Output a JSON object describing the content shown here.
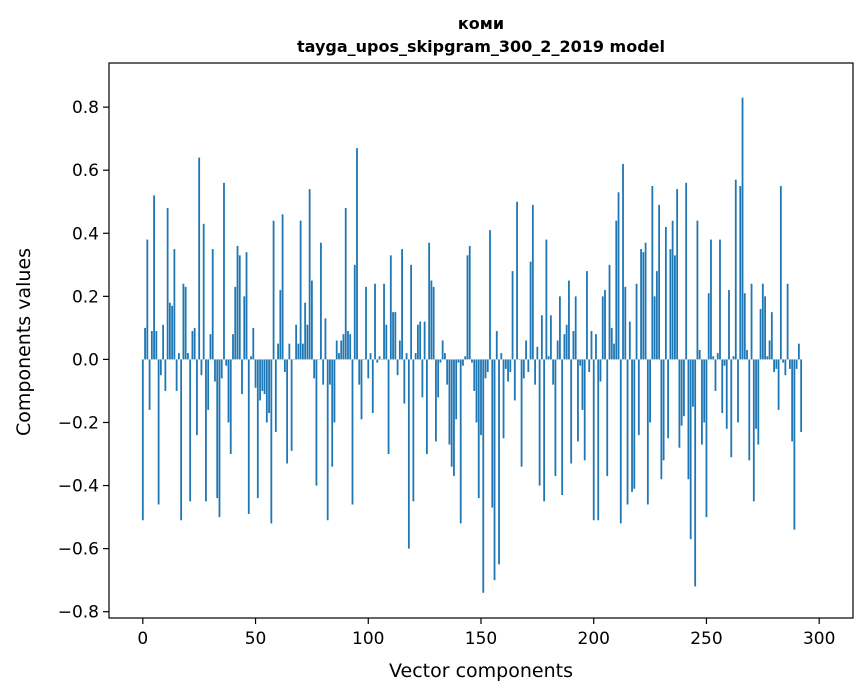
{
  "chart_data": {
    "type": "bar",
    "title": "коми",
    "subtitle": "tayga_upos_skipgram_300_2_2019 model",
    "xlabel": "Vector components",
    "ylabel": "Components values",
    "xlim": [
      -15,
      315
    ],
    "ylim": [
      -0.82,
      0.94
    ],
    "xticks": [
      0,
      50,
      100,
      150,
      200,
      250,
      300
    ],
    "yticks": [
      -0.8,
      -0.6,
      -0.4,
      -0.2,
      0.0,
      0.2,
      0.4,
      0.6,
      0.8
    ],
    "ytick_labels": [
      "−0.8",
      "−0.6",
      "−0.4",
      "−0.2",
      "0.0",
      "0.2",
      "0.4",
      "0.6",
      "0.8"
    ],
    "xtick_labels": [
      "0",
      "50",
      "100",
      "150",
      "200",
      "250",
      "300"
    ],
    "bar_color": "#1f77b4",
    "grid": false,
    "values": [
      -0.51,
      0.1,
      0.38,
      -0.16,
      0.09,
      0.52,
      0.09,
      -0.46,
      -0.05,
      0.11,
      -0.1,
      0.48,
      0.18,
      0.17,
      0.35,
      -0.1,
      0.02,
      -0.51,
      0.24,
      0.23,
      0.02,
      -0.45,
      0.09,
      0.1,
      -0.24,
      0.64,
      -0.05,
      0.43,
      -0.45,
      -0.16,
      0.08,
      0.35,
      -0.07,
      -0.44,
      -0.5,
      -0.06,
      0.56,
      -0.02,
      -0.2,
      -0.3,
      0.08,
      0.23,
      0.36,
      0.33,
      -0.11,
      0.2,
      0.34,
      -0.49,
      0.01,
      0.1,
      -0.09,
      -0.44,
      -0.13,
      -0.1,
      -0.11,
      -0.2,
      -0.17,
      -0.52,
      0.44,
      -0.23,
      0.05,
      0.22,
      0.46,
      -0.04,
      -0.33,
      0.05,
      -0.29,
      0.0,
      0.11,
      0.05,
      0.44,
      0.05,
      0.18,
      0.11,
      0.54,
      0.25,
      -0.06,
      -0.4,
      0.0,
      0.37,
      -0.08,
      0.13,
      -0.51,
      -0.08,
      -0.34,
      -0.2,
      0.06,
      0.02,
      0.06,
      0.08,
      0.48,
      0.09,
      0.08,
      -0.46,
      0.3,
      0.67,
      -0.08,
      -0.19,
      0.0,
      0.23,
      -0.06,
      0.02,
      -0.17,
      0.24,
      -0.01,
      0.01,
      0.0,
      0.24,
      0.11,
      -0.3,
      0.33,
      0.15,
      0.15,
      -0.05,
      0.06,
      0.35,
      -0.14,
      0.02,
      -0.6,
      0.3,
      -0.45,
      0.02,
      0.11,
      0.12,
      -0.12,
      0.12,
      -0.3,
      0.37,
      0.25,
      0.23,
      -0.26,
      -0.12,
      -0.01,
      0.06,
      0.02,
      -0.08,
      -0.27,
      -0.34,
      -0.37,
      -0.19,
      -0.01,
      -0.52,
      -0.02,
      0.01,
      0.33,
      0.36,
      -0.01,
      -0.1,
      -0.2,
      -0.44,
      -0.24,
      -0.74,
      -0.06,
      -0.04,
      0.41,
      -0.47,
      -0.7,
      0.09,
      -0.65,
      0.02,
      -0.25,
      -0.03,
      -0.07,
      -0.04,
      0.28,
      -0.13,
      0.5,
      0.0,
      -0.34,
      -0.06,
      0.06,
      -0.04,
      0.31,
      0.49,
      -0.08,
      0.04,
      -0.4,
      0.14,
      -0.45,
      0.38,
      0.01,
      0.14,
      -0.08,
      -0.37,
      0.06,
      0.2,
      -0.43,
      0.08,
      0.11,
      0.25,
      -0.33,
      0.09,
      0.2,
      -0.26,
      -0.02,
      -0.16,
      -0.32,
      0.28,
      -0.04,
      0.09,
      -0.51,
      0.08,
      -0.51,
      -0.07,
      0.2,
      0.22,
      -0.37,
      0.3,
      0.1,
      0.05,
      0.44,
      0.53,
      -0.52,
      0.62,
      0.23,
      -0.46,
      0.12,
      -0.42,
      -0.41,
      0.24,
      -0.24,
      0.35,
      0.34,
      0.37,
      -0.46,
      -0.2,
      0.55,
      0.2,
      0.28,
      0.49,
      -0.38,
      -0.32,
      0.42,
      -0.25,
      0.35,
      0.44,
      0.33,
      0.54,
      -0.28,
      -0.21,
      -0.18,
      0.56,
      -0.38,
      -0.57,
      -0.15,
      -0.72,
      0.44,
      0.03,
      -0.27,
      -0.2,
      -0.5,
      0.21,
      0.38,
      0.01,
      -0.1,
      0.02,
      0.38,
      -0.17,
      -0.02,
      -0.22,
      0.22,
      -0.31,
      0.01,
      0.57,
      -0.2,
      0.55,
      0.83,
      0.21,
      0.03,
      -0.32,
      0.24,
      -0.45,
      -0.22,
      -0.27,
      0.16,
      0.24,
      0.2,
      0.01,
      0.06,
      0.15,
      -0.04,
      -0.03,
      -0.16,
      0.55,
      -0.01,
      -0.05,
      0.24,
      -0.03,
      -0.26,
      -0.54,
      -0.03,
      0.05,
      -0.23
    ]
  }
}
